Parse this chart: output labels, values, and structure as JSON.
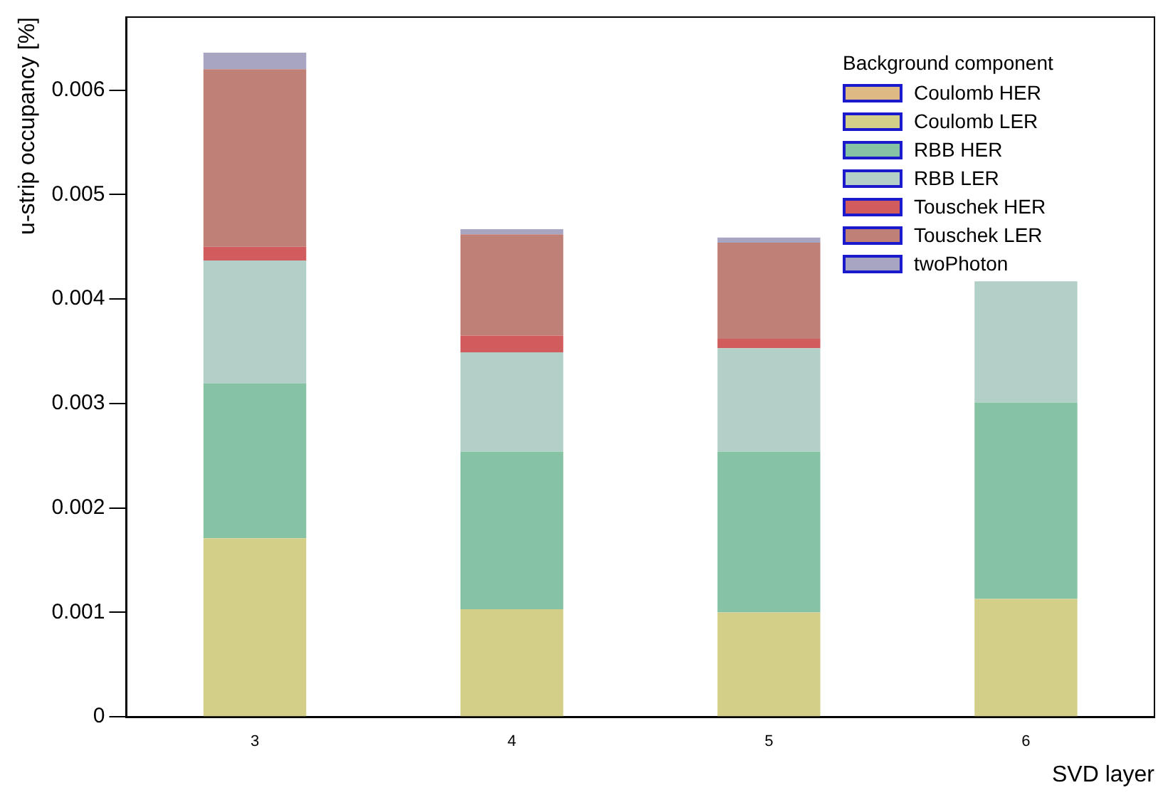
{
  "chart_data": {
    "type": "bar",
    "stacked": true,
    "xlabel": "SVD layer",
    "ylabel": "u-strip occupancy [%]",
    "legend_title": "Background component",
    "legend": "top right",
    "grid": false,
    "categories": [
      "3",
      "4",
      "5",
      "6"
    ],
    "ylim": [
      0,
      0.0067
    ],
    "yticks": [
      0,
      0.001,
      0.002,
      0.003,
      0.004,
      0.005,
      0.006
    ],
    "series": [
      {
        "name": "Coulomb HER",
        "color": "#dfb984",
        "values": [
          0,
          0,
          0,
          0
        ]
      },
      {
        "name": "Coulomb LER",
        "color": "#d4cf88",
        "values": [
          0.00171,
          0.00103,
          0.001,
          0.00113
        ]
      },
      {
        "name": "RBB HER",
        "color": "#86c3a5",
        "values": [
          0.00148,
          0.00151,
          0.00154,
          0.00188
        ]
      },
      {
        "name": "RBB LER",
        "color": "#b2d0c8",
        "values": [
          0.00118,
          0.00095,
          0.00099,
          0.00116
        ]
      },
      {
        "name": "Touschek HER",
        "color": "#d05c5d",
        "values": [
          0.00013,
          0.00016,
          9e-05,
          null
        ]
      },
      {
        "name": "Touschek LER",
        "color": "#bf8077",
        "values": [
          0.0017,
          0.00097,
          0.00092,
          null
        ]
      },
      {
        "name": "twoPhoton",
        "color": "#a8a5c2",
        "values": [
          0.00016,
          5e-05,
          5e-05,
          null
        ]
      }
    ]
  }
}
